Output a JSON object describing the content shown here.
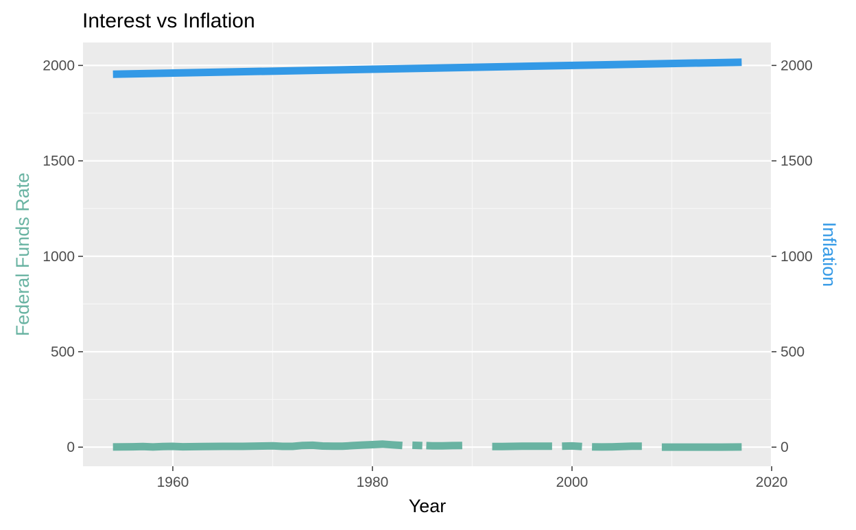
{
  "chart_data": {
    "type": "line",
    "title": "Interest vs Inflation",
    "xlabel": "Year",
    "ylabel_left": "Federal Funds Rate",
    "ylabel_right": "Inflation",
    "xlim": [
      1951,
      2020
    ],
    "ylim": [
      -100,
      2120
    ],
    "x_ticks": [
      1960,
      1980,
      2000,
      2020
    ],
    "y_ticks": [
      0,
      500,
      1000,
      1500,
      2000
    ],
    "grid": true,
    "panel_background": "#ebebeb",
    "colors": {
      "Federal Funds Rate": "#69b3a2",
      "Inflation": "#3399e6"
    },
    "series": [
      {
        "name": "Federal Funds Rate",
        "color": "#69b3a2",
        "segments": [
          [
            [
              1954,
              1
            ],
            [
              1956,
              2
            ],
            [
              1957,
              3
            ],
            [
              1958,
              1
            ],
            [
              1959,
              3
            ],
            [
              1960,
              4
            ],
            [
              1961,
              2
            ],
            [
              1963,
              3
            ],
            [
              1965,
              4
            ],
            [
              1967,
              4
            ],
            [
              1969,
              6
            ],
            [
              1970,
              7
            ],
            [
              1971,
              4
            ],
            [
              1972,
              4
            ],
            [
              1973,
              9
            ],
            [
              1974,
              10
            ],
            [
              1975,
              6
            ],
            [
              1976,
              5
            ],
            [
              1977,
              5
            ],
            [
              1978,
              8
            ],
            [
              1979,
              11
            ],
            [
              1980,
              13
            ],
            [
              1981,
              16
            ],
            [
              1982,
              12
            ],
            [
              1983,
              9
            ]
          ],
          [
            [
              1984,
              10
            ],
            [
              1985,
              8
            ]
          ],
          [
            [
              1985.4,
              8
            ],
            [
              1986,
              7
            ],
            [
              1987,
              7
            ],
            [
              1988,
              8
            ],
            [
              1989,
              9
            ]
          ],
          [
            [
              1992,
              3
            ],
            [
              1993,
              3
            ],
            [
              1995,
              5
            ],
            [
              1997,
              5
            ],
            [
              1998,
              5
            ]
          ],
          [
            [
              1999,
              5
            ],
            [
              2000,
              6.5
            ],
            [
              2001,
              3.5
            ]
          ],
          [
            [
              2002,
              1.5
            ],
            [
              2003,
              1
            ],
            [
              2004,
              1.5
            ],
            [
              2005,
              3
            ],
            [
              2006,
              5
            ],
            [
              2007,
              5
            ]
          ],
          [
            [
              2009,
              0.2
            ],
            [
              2012,
              0.1
            ],
            [
              2015,
              0.2
            ],
            [
              2017,
              1
            ]
          ]
        ]
      },
      {
        "name": "Inflation",
        "color": "#3399e6",
        "segments": [
          [
            [
              1954,
              1954
            ],
            [
              2017,
              2017
            ]
          ]
        ]
      }
    ]
  }
}
